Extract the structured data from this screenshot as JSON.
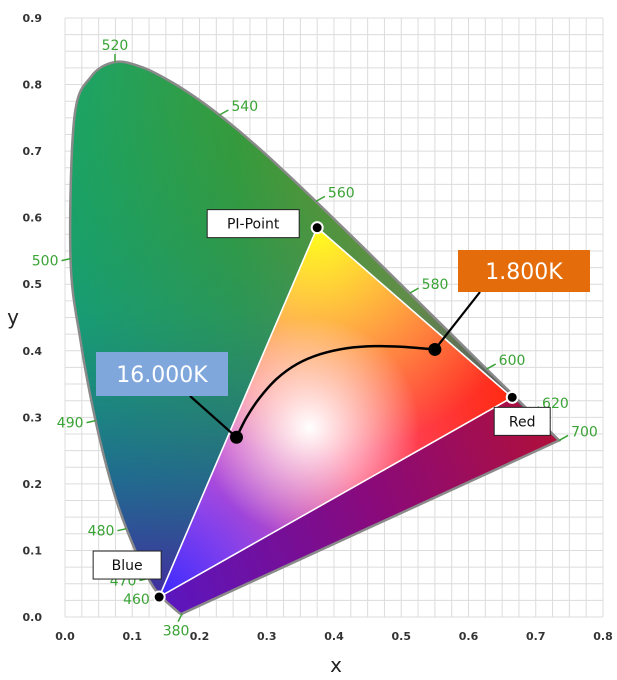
{
  "chart_data": {
    "type": "scatter",
    "xlabel": "x",
    "ylabel": "y",
    "xlim": [
      0.0,
      0.8
    ],
    "ylim": [
      0.0,
      0.9
    ],
    "xticks": [
      "0.0",
      "0.1",
      "0.2",
      "0.3",
      "0.4",
      "0.5",
      "0.6",
      "0.7",
      "0.8"
    ],
    "yticks": [
      "0.0",
      "0.1",
      "0.2",
      "0.3",
      "0.4",
      "0.5",
      "0.6",
      "0.7",
      "0.8",
      "0.9"
    ],
    "grid": true,
    "spectral_locus": [
      [
        0.1741,
        0.005
      ],
      [
        0.1738,
        0.0049
      ],
      [
        0.1721,
        0.0048
      ],
      [
        0.1666,
        0.0089
      ],
      [
        0.144,
        0.0297
      ],
      [
        0.1241,
        0.0578
      ],
      [
        0.0913,
        0.1327
      ],
      [
        0.0687,
        0.2007
      ],
      [
        0.0454,
        0.295
      ],
      [
        0.0235,
        0.4127
      ],
      [
        0.0082,
        0.5384
      ],
      [
        0.0139,
        0.7502
      ],
      [
        0.0389,
        0.812
      ],
      [
        0.0743,
        0.8338
      ],
      [
        0.1142,
        0.8262
      ],
      [
        0.1547,
        0.8059
      ],
      [
        0.1929,
        0.7816
      ],
      [
        0.2296,
        0.7543
      ],
      [
        0.2658,
        0.7243
      ],
      [
        0.3016,
        0.6923
      ],
      [
        0.3373,
        0.6589
      ],
      [
        0.3731,
        0.6245
      ],
      [
        0.4087,
        0.5896
      ],
      [
        0.4441,
        0.5547
      ],
      [
        0.4788,
        0.5202
      ],
      [
        0.5125,
        0.4866
      ],
      [
        0.5448,
        0.4544
      ],
      [
        0.5752,
        0.4242
      ],
      [
        0.6029,
        0.3965
      ],
      [
        0.627,
        0.3725
      ],
      [
        0.6482,
        0.3514
      ],
      [
        0.6658,
        0.334
      ],
      [
        0.6801,
        0.3197
      ],
      [
        0.6915,
        0.3083
      ],
      [
        0.7006,
        0.2993
      ],
      [
        0.7079,
        0.292
      ],
      [
        0.714,
        0.2859
      ],
      [
        0.719,
        0.2809
      ],
      [
        0.723,
        0.277
      ],
      [
        0.726,
        0.274
      ],
      [
        0.7347,
        0.2653
      ]
    ],
    "wavelength_labels": [
      {
        "text": "380",
        "x": 0.1741,
        "y": 0.005,
        "side": "below"
      },
      {
        "text": "460",
        "x": 0.144,
        "y": 0.0297,
        "side": "left"
      },
      {
        "text": "470",
        "x": 0.1241,
        "y": 0.0578,
        "side": "left"
      },
      {
        "text": "480",
        "x": 0.0913,
        "y": 0.1327,
        "side": "left"
      },
      {
        "text": "490",
        "x": 0.0454,
        "y": 0.295,
        "side": "left"
      },
      {
        "text": "500",
        "x": 0.0082,
        "y": 0.5384,
        "side": "left"
      },
      {
        "text": "520",
        "x": 0.0743,
        "y": 0.8338,
        "side": "above"
      },
      {
        "text": "540",
        "x": 0.2296,
        "y": 0.7543,
        "side": "right"
      },
      {
        "text": "560",
        "x": 0.3731,
        "y": 0.6245,
        "side": "right"
      },
      {
        "text": "580",
        "x": 0.5125,
        "y": 0.4866,
        "side": "right"
      },
      {
        "text": "600",
        "x": 0.627,
        "y": 0.3725,
        "side": "right"
      },
      {
        "text": "620",
        "x": 0.6915,
        "y": 0.3083,
        "side": "right"
      },
      {
        "text": "700",
        "x": 0.7347,
        "y": 0.2653,
        "side": "right"
      }
    ],
    "gamut": [
      {
        "label": "PI-Point",
        "x": 0.375,
        "y": 0.585
      },
      {
        "label": "Red",
        "x": 0.665,
        "y": 0.33
      },
      {
        "label": "Blue",
        "x": 0.14,
        "y": 0.03
      }
    ],
    "planckian_curve": [
      [
        0.255,
        0.27
      ],
      [
        0.27,
        0.3
      ],
      [
        0.29,
        0.33
      ],
      [
        0.315,
        0.358
      ],
      [
        0.345,
        0.38
      ],
      [
        0.38,
        0.395
      ],
      [
        0.42,
        0.404
      ],
      [
        0.46,
        0.407
      ],
      [
        0.5,
        0.406
      ],
      [
        0.55,
        0.402
      ]
    ],
    "cct_points": [
      {
        "label": "16.000K",
        "x": 0.255,
        "y": 0.27,
        "color": "#7fa7dc",
        "text_color": "#ffffff"
      },
      {
        "label": "1.800K",
        "x": 0.55,
        "y": 0.402,
        "color": "#e46c0a",
        "text_color": "#ffffff"
      }
    ],
    "colors": {
      "locus_stroke": "#8a8a8a",
      "gamut_stroke": "#ffffff",
      "curve": "#000000",
      "grid": "#dcdcdc",
      "wavelength_text": "#3aa335",
      "red_corner": "#ff2a10",
      "green_corner": "#ffff1a",
      "blue_corner": "#3a2aff",
      "white_point": "#ffffff"
    }
  }
}
